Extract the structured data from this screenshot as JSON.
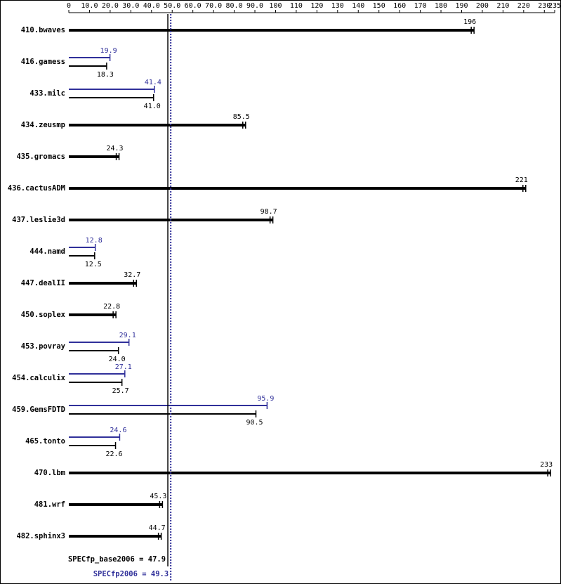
{
  "chart_data": {
    "type": "bar",
    "categories": [
      "410.bwaves",
      "416.gamess",
      "433.milc",
      "434.zeusmp",
      "435.gromacs",
      "436.cactusADM",
      "437.leslie3d",
      "444.namd",
      "447.dealII",
      "450.soplex",
      "453.povray",
      "454.calculix",
      "459.GemsFDTD",
      "465.tonto",
      "470.lbm",
      "481.wrf",
      "482.sphinx3"
    ],
    "series": [
      {
        "color": "#30309a",
        "values": [
          null,
          19.9,
          41.4,
          null,
          null,
          null,
          null,
          12.8,
          null,
          null,
          29.1,
          27.1,
          95.9,
          24.6,
          null,
          null,
          null
        ],
        "value_labels": [
          null,
          "19.9",
          "41.4",
          null,
          null,
          null,
          null,
          "12.8",
          null,
          null,
          "29.1",
          "27.1",
          "95.9",
          "24.6",
          null,
          null,
          null
        ]
      },
      {
        "color": "#000000",
        "values": [
          196,
          18.3,
          41.0,
          85.5,
          24.3,
          221,
          98.7,
          12.5,
          32.7,
          22.8,
          24.0,
          25.7,
          90.5,
          22.6,
          233,
          45.3,
          44.7
        ],
        "value_labels": [
          "196",
          "18.3",
          "41.0",
          "85.5",
          "24.3",
          "221",
          "98.7",
          "12.5",
          "32.7",
          "22.8",
          "24.0",
          "25.7",
          "90.5",
          "22.6",
          "233",
          "45.3",
          "44.7"
        ]
      }
    ],
    "xlim": [
      0,
      235
    ],
    "xticks": [
      0,
      {
        "value": 10,
        "label": "10.0"
      },
      {
        "value": 20,
        "label": "20.0"
      },
      {
        "value": 30,
        "label": "30.0"
      },
      {
        "value": 40,
        "label": "40.0"
      },
      {
        "value": 50,
        "label": "50.0"
      },
      {
        "value": 60,
        "label": "60.0"
      },
      {
        "value": 70,
        "label": "70.0"
      },
      {
        "value": 80,
        "label": "80.0"
      },
      {
        "value": 90,
        "label": "90.0"
      },
      100,
      110,
      120,
      130,
      140,
      150,
      160,
      170,
      180,
      190,
      200,
      210,
      220,
      230,
      235
    ],
    "reference_lines": [
      {
        "label": "SPECfp_base2006 = 47.9",
        "value": 47.9,
        "color": "#000000",
        "dotted": false
      },
      {
        "label": "SPECfp2006 = 49.3",
        "value": 49.3,
        "color": "#30309a",
        "dotted": true
      }
    ]
  }
}
